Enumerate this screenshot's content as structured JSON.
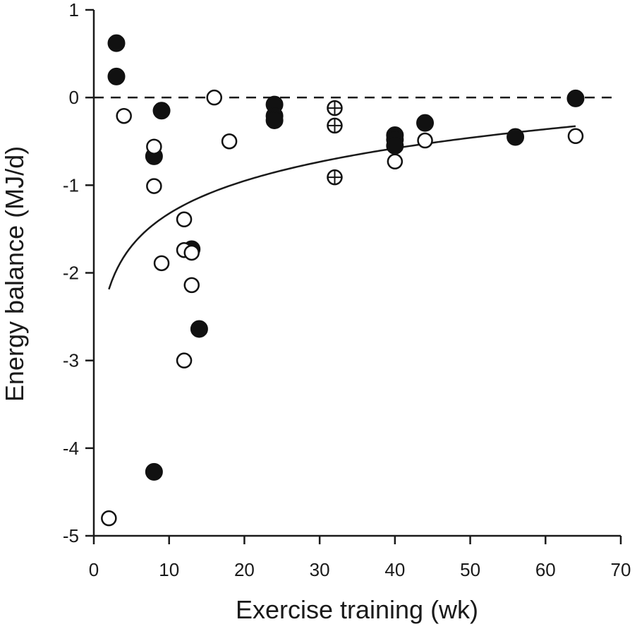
{
  "chart_data": {
    "type": "scatter",
    "title": "",
    "xlabel": "Exercise training (wk)",
    "ylabel": "Energy balance (MJ/d)",
    "xlim": [
      0,
      70
    ],
    "ylim": [
      -5,
      1
    ],
    "x_ticks": [
      0,
      10,
      20,
      30,
      40,
      50,
      60,
      70
    ],
    "y_ticks": [
      1,
      0,
      -1,
      -2,
      -3,
      -4,
      -5
    ],
    "x_tick_labels": [
      "0",
      "10",
      "20",
      "30",
      "40",
      "50",
      "60",
      "70"
    ],
    "y_tick_labels": [
      "1",
      "0",
      "-1",
      "-2",
      "-3",
      "-4",
      "-5"
    ],
    "grid": false,
    "reference_line": {
      "y": 0,
      "style": "dashed"
    },
    "series": [
      {
        "name": "filled",
        "marker": "filled-circle",
        "points": [
          [
            3,
            0.62
          ],
          [
            3,
            0.24
          ],
          [
            9,
            -0.15
          ],
          [
            8,
            -0.67
          ],
          [
            8,
            -4.27
          ],
          [
            14,
            -2.64
          ],
          [
            13,
            -1.73
          ],
          [
            24,
            -0.08
          ],
          [
            24,
            -0.21
          ],
          [
            24,
            -0.26
          ],
          [
            40,
            -0.43
          ],
          [
            40,
            -0.48
          ],
          [
            40,
            -0.55
          ],
          [
            44,
            -0.29
          ],
          [
            56,
            -0.45
          ],
          [
            64,
            -0.01
          ]
        ]
      },
      {
        "name": "open",
        "marker": "open-circle",
        "points": [
          [
            2,
            -4.8
          ],
          [
            4,
            -0.21
          ],
          [
            8,
            -0.56
          ],
          [
            8,
            -1.01
          ],
          [
            9,
            -1.89
          ],
          [
            12,
            -1.39
          ],
          [
            12,
            -1.74
          ],
          [
            13,
            -1.77
          ],
          [
            13,
            -2.14
          ],
          [
            12,
            -3.0
          ],
          [
            16,
            0.0
          ],
          [
            18,
            -0.5
          ],
          [
            40,
            -0.73
          ],
          [
            44,
            -0.49
          ],
          [
            64,
            -0.44
          ]
        ]
      },
      {
        "name": "crossed",
        "marker": "circle-plus",
        "points": [
          [
            32,
            -0.12
          ],
          [
            32,
            -0.32
          ],
          [
            32,
            -0.91
          ]
        ]
      }
    ],
    "fit_curve": {
      "type": "logarithmic",
      "x_range": [
        2,
        64
      ],
      "a": -2.56,
      "b": 0.537
    }
  }
}
